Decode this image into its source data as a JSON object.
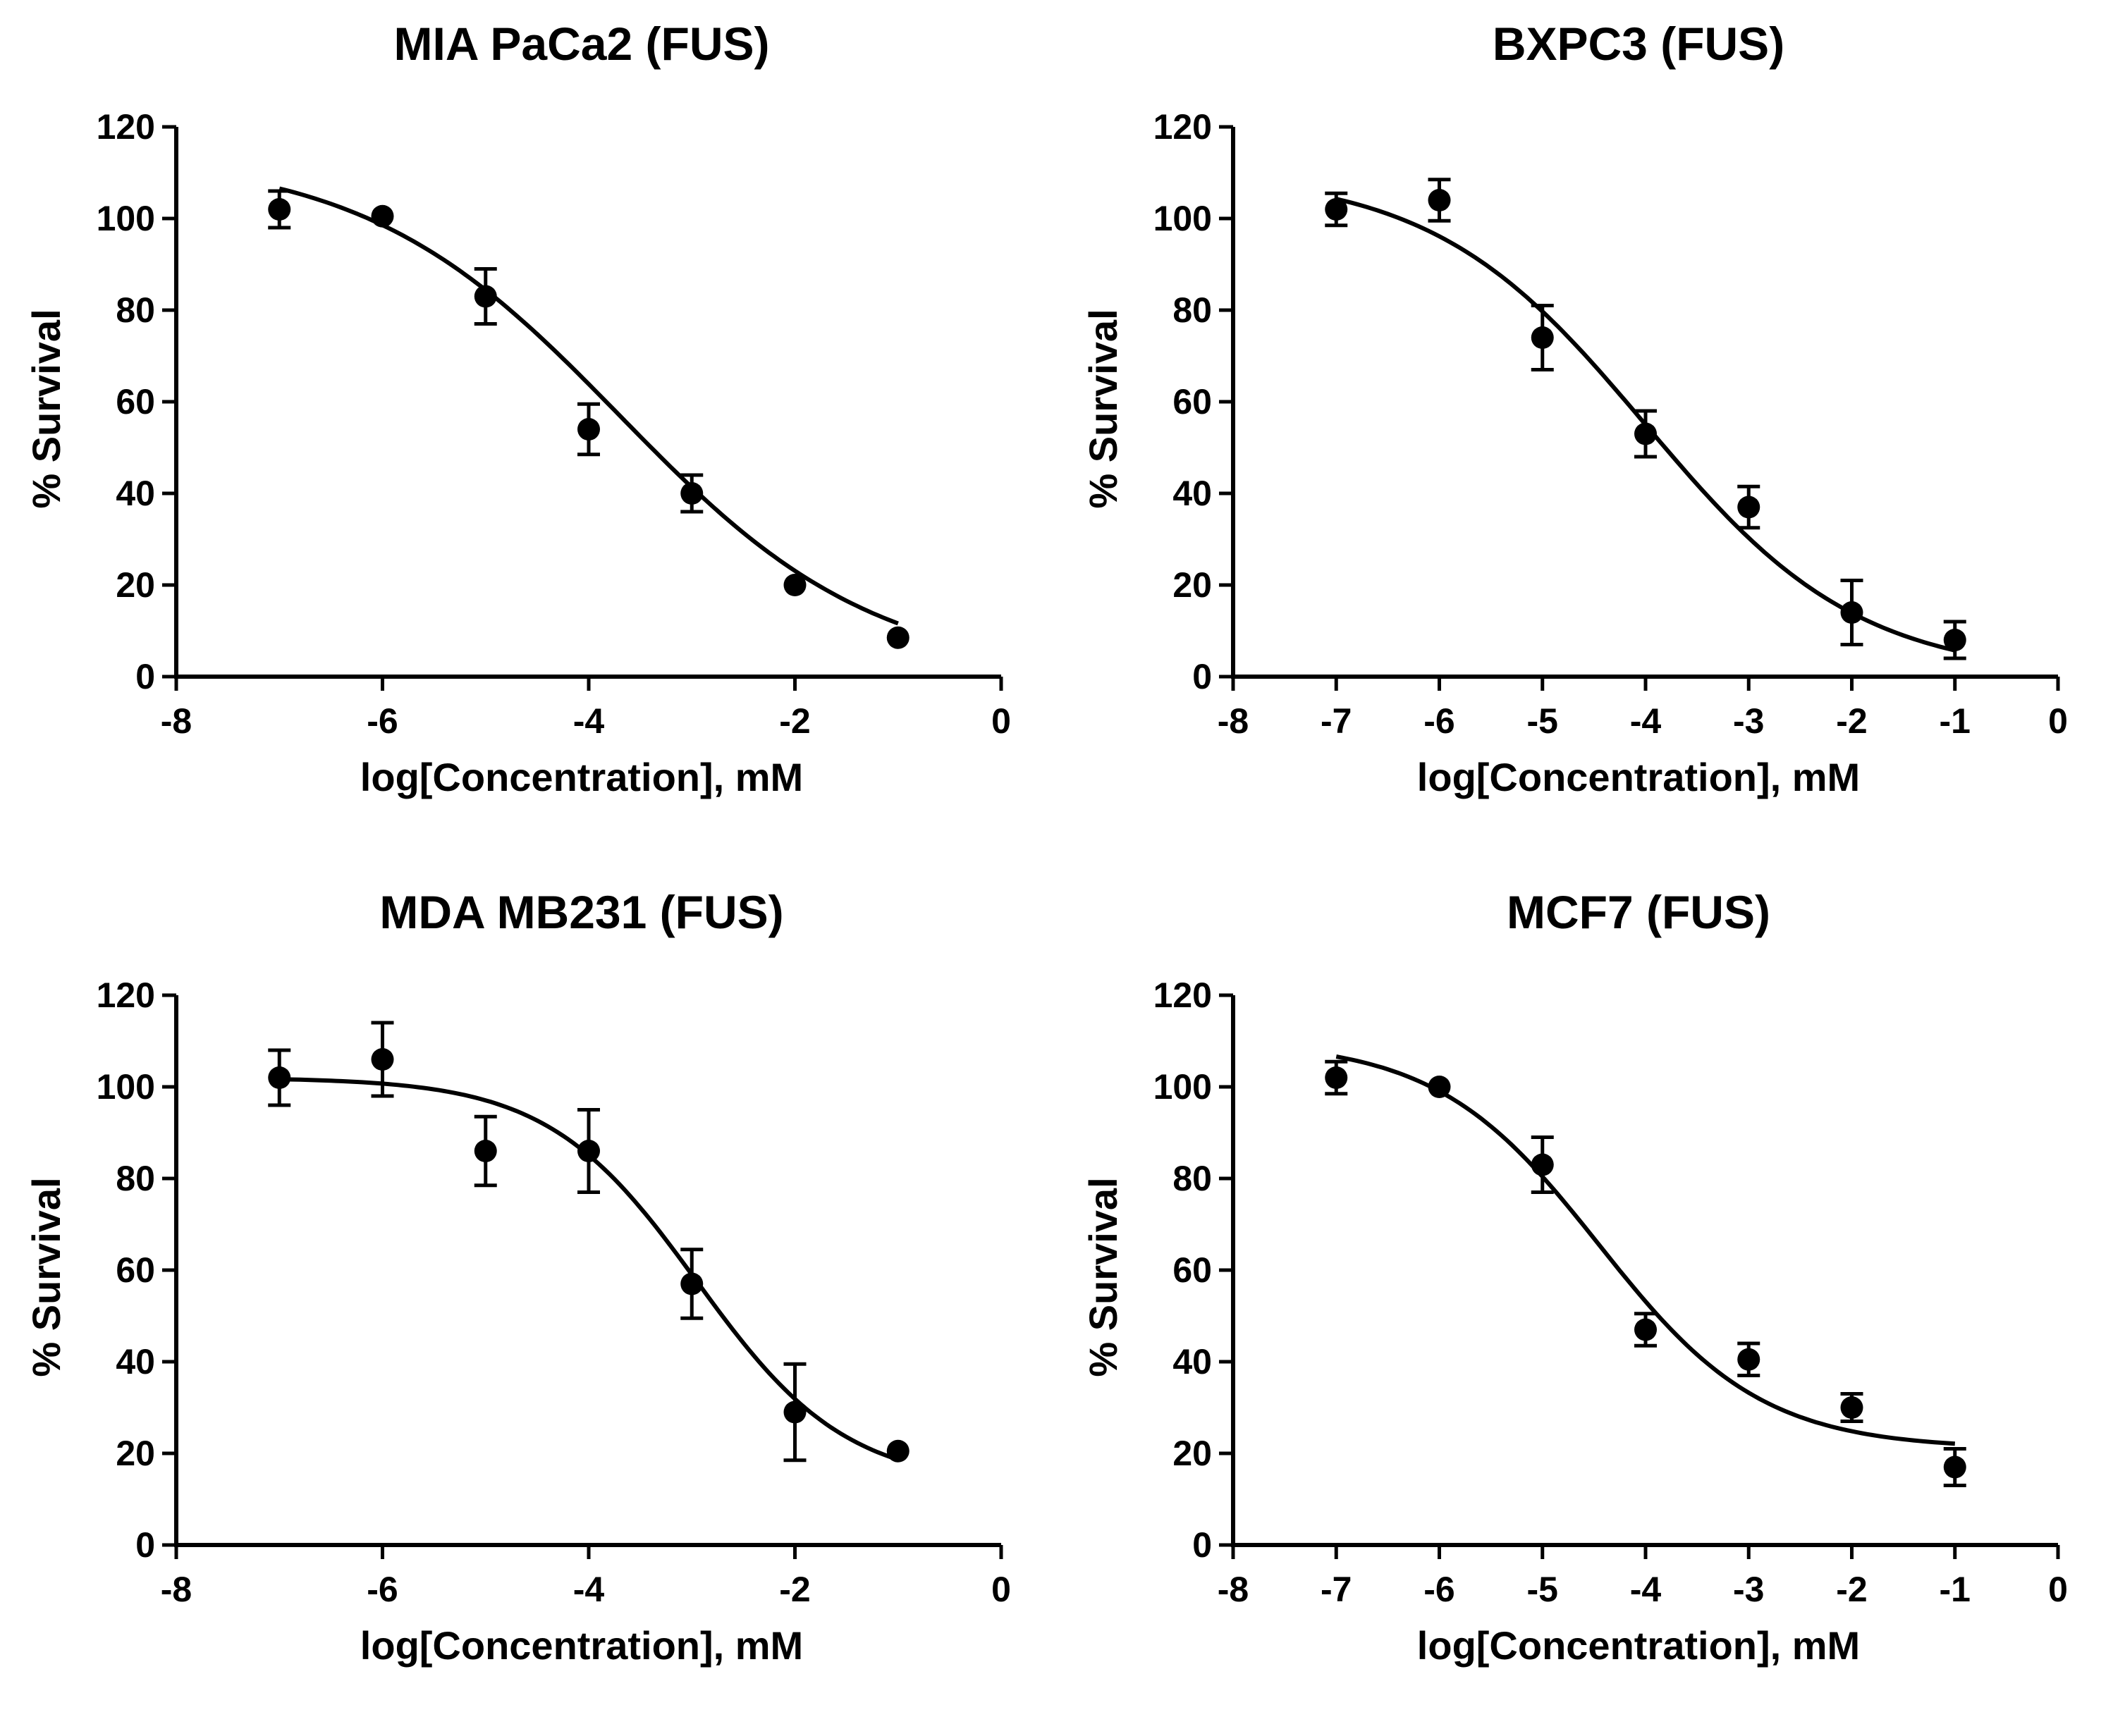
{
  "chart_data": [
    {
      "type": "scatter",
      "title": "MIA PaCa2 (FUS)",
      "xlabel": "log[Concentration], mM",
      "ylabel": "% Survival",
      "xlim": [
        -8,
        0
      ],
      "ylim": [
        0,
        120
      ],
      "xticks": [
        -8,
        -6,
        -4,
        -2,
        0
      ],
      "yticks": [
        0,
        20,
        40,
        60,
        80,
        100,
        120
      ],
      "grid": false,
      "series": [
        {
          "name": "Survival",
          "x": [
            -7,
            -6,
            -5,
            -4,
            -3,
            -2,
            -1
          ],
          "y": [
            102,
            100.5,
            83,
            54,
            40,
            20,
            8.5
          ],
          "error": [
            4,
            1,
            6,
            5.5,
            4,
            1,
            1
          ]
        }
      ],
      "fit": {
        "type": "sigmoid",
        "top": 114,
        "bottom": 0,
        "logIC50": -3.7,
        "hill": -0.35,
        "x_range": [
          -7,
          -1
        ]
      }
    },
    {
      "type": "scatter",
      "title": "BXPC3 (FUS)",
      "xlabel": "log[Concentration], mM",
      "ylabel": "% Survival",
      "xlim": [
        -8,
        0
      ],
      "ylim": [
        0,
        120
      ],
      "xticks": [
        -8,
        -7,
        -6,
        -5,
        -4,
        -3,
        -2,
        -1,
        0
      ],
      "yticks": [
        0,
        20,
        40,
        60,
        80,
        100,
        120
      ],
      "grid": false,
      "series": [
        {
          "name": "Survival",
          "x": [
            -7,
            -6,
            -5,
            -4,
            -3,
            -2,
            -1
          ],
          "y": [
            102,
            104,
            74,
            53,
            37,
            14,
            8
          ],
          "error": [
            3.5,
            4.5,
            7,
            5,
            4.5,
            7,
            4
          ]
        }
      ],
      "fit": {
        "type": "sigmoid",
        "top": 110,
        "bottom": 0,
        "logIC50": -4.0,
        "hill": -0.42,
        "x_range": [
          -7,
          -1
        ]
      }
    },
    {
      "type": "scatter",
      "title": "MDA MB231 (FUS)",
      "xlabel": "log[Concentration], mM",
      "ylabel": "% Survival",
      "xlim": [
        -8,
        0
      ],
      "ylim": [
        0,
        120
      ],
      "xticks": [
        -8,
        -6,
        -4,
        -2,
        0
      ],
      "yticks": [
        20,
        40,
        60,
        80,
        100,
        120,
        0
      ],
      "grid": false,
      "series": [
        {
          "name": "Survival",
          "x": [
            -7,
            -6,
            -5,
            -4,
            -3,
            -2,
            -1
          ],
          "y": [
            102,
            106,
            86,
            86,
            57,
            29,
            20.5
          ],
          "error": [
            6,
            8,
            7.5,
            9,
            7.5,
            10.5,
            1
          ]
        }
      ],
      "fit": {
        "type": "sigmoid",
        "top": 102,
        "bottom": 13,
        "logIC50": -2.95,
        "hill": -0.6,
        "x_range": [
          -7,
          -1
        ]
      }
    },
    {
      "type": "scatter",
      "title": "MCF7 (FUS)",
      "xlabel": "log[Concentration], mM",
      "ylabel": "% Survival",
      "xlim": [
        -8,
        0
      ],
      "ylim": [
        0,
        120
      ],
      "xticks": [
        -8,
        -7,
        -6,
        -5,
        -4,
        -3,
        -2,
        -1,
        0
      ],
      "yticks": [
        0,
        20,
        40,
        60,
        80,
        100,
        120
      ],
      "grid": false,
      "series": [
        {
          "name": "Survival",
          "x": [
            -7,
            -6,
            -5,
            -4,
            -3,
            -2,
            -1
          ],
          "y": [
            102,
            100,
            83,
            47,
            40.5,
            30,
            17
          ],
          "error": [
            3.5,
            1,
            6,
            3.5,
            3.5,
            3,
            4
          ]
        }
      ],
      "fit": {
        "type": "sigmoid",
        "top": 110,
        "bottom": 21,
        "logIC50": -4.45,
        "hill": -0.55,
        "x_range": [
          -7,
          -1
        ]
      }
    }
  ]
}
